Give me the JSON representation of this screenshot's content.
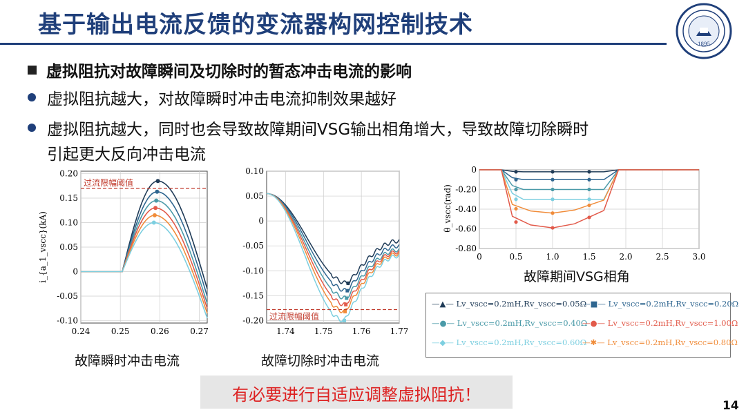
{
  "header": {
    "title": "基于输出电流反馈的变流器构网控制技术",
    "subtitle": "虚拟阻抗对故障瞬间及切除时的暂态冲击电流的影响",
    "bullet1": "虚拟阻抗越大，对故障瞬时冲击电流抑制效果越好",
    "bullet2_line1": "虚拟阻抗越大，同时也会导致故障期间VSG输出相角增大，导致故障切除瞬时",
    "bullet2_line2": "引起更大反向冲击电流"
  },
  "footer": {
    "note": "有必要进行自适应调整虚拟阻抗！",
    "page": "14"
  },
  "colors": [
    "#1f3b57",
    "#2f6690",
    "#4a9aa8",
    "#7dcfe0",
    "#f08c3a",
    "#e25a4a"
  ],
  "chart_data": [
    {
      "type": "line",
      "caption": "故障瞬时冲击电流",
      "ylabel": "i_{a_1_vscc}(kA)",
      "xlim": [
        0.24,
        0.272
      ],
      "ylim": [
        -0.105,
        0.205
      ],
      "xticks": [
        "0.24",
        "0.25",
        "0.26",
        "0.27"
      ],
      "yticks": [
        "0.20",
        "0.15",
        "0.10",
        "0.05",
        "0",
        "-0.05",
        "-0.10"
      ],
      "annotation": {
        "text": "过流限幅阈值",
        "y": 0.17
      },
      "series": [
        {
          "peak_x": 0.2595,
          "peak": 0.185,
          "end": -0.035,
          "legend": 0
        },
        {
          "peak_x": 0.2593,
          "peak": 0.163,
          "end": -0.05,
          "legend": 3
        },
        {
          "peak_x": 0.2591,
          "peak": 0.145,
          "end": -0.065,
          "legend": 1
        },
        {
          "peak_x": 0.2589,
          "peak": 0.13,
          "end": -0.075,
          "legend": 4
        },
        {
          "peak_x": 0.2587,
          "peak": 0.115,
          "end": -0.085,
          "legend": 5
        },
        {
          "peak_x": 0.2585,
          "peak": 0.1,
          "end": -0.095,
          "legend": 2
        }
      ]
    },
    {
      "type": "line",
      "caption": "故障切除时冲击电流",
      "xlim": [
        1.735,
        1.77
      ],
      "ylim": [
        -0.205,
        0.1
      ],
      "xticks": [
        "1.74",
        "1.75",
        "1.76",
        "1.77"
      ],
      "yticks": [
        "0.10",
        "0.05",
        "0",
        "-0.05",
        "-0.10",
        "-0.15",
        "-0.20"
      ],
      "annotation": {
        "text": "过流限幅阈值",
        "y": -0.178
      },
      "series": [
        {
          "trough_x": 1.7565,
          "trough": -0.125,
          "end": -0.04,
          "legend": 0
        },
        {
          "trough_x": 1.7563,
          "trough": -0.14,
          "end": -0.05,
          "legend": 3
        },
        {
          "trough_x": 1.7561,
          "trough": -0.155,
          "end": -0.058,
          "legend": 1
        },
        {
          "trough_x": 1.7559,
          "trough": -0.168,
          "end": -0.062,
          "legend": 4
        },
        {
          "trough_x": 1.7557,
          "trough": -0.182,
          "end": -0.066,
          "legend": 5
        },
        {
          "trough_x": 1.7555,
          "trough": -0.2,
          "end": -0.07,
          "legend": 2
        }
      ]
    },
    {
      "type": "line",
      "caption": "故障期间VSG相角",
      "ylabel": "θ_vscc(rad)",
      "xlim": [
        0,
        3.0
      ],
      "ylim": [
        -0.8,
        0
      ],
      "xticks": [
        "0",
        "0.5",
        "1.0",
        "1.5",
        "2.0",
        "2.5",
        "3.0"
      ],
      "yticks": [
        "0",
        "-0.20",
        "-0.40",
        "-0.60",
        "-0.80"
      ],
      "series": [
        {
          "level": -0.02,
          "legend": 0,
          "marker": "triangle"
        },
        {
          "level": -0.1,
          "legend": 3,
          "marker": "square"
        },
        {
          "level": -0.2,
          "legend": 1,
          "marker": "circle"
        },
        {
          "level": -0.3,
          "legend": 2,
          "marker": "diamond"
        },
        {
          "level": -0.44,
          "legend": 5,
          "marker": "star"
        },
        {
          "level": -0.59,
          "legend": 4,
          "marker": "dot"
        }
      ]
    }
  ],
  "legend": [
    {
      "L": "0.2mH",
      "R": "0.05Ω",
      "color": "#1f3b57",
      "marker": "▲"
    },
    {
      "L": "0.2mH",
      "R": "0.40Ω",
      "color": "#4a9aa8",
      "marker": "●"
    },
    {
      "L": "0.2mH",
      "R": "0.60Ω",
      "color": "#7dcfe0",
      "marker": "◆"
    },
    {
      "L": "0.2mH",
      "R": "0.20Ω",
      "color": "#2f6690",
      "marker": "■"
    },
    {
      "L": "0.2mH",
      "R": "1.00Ω",
      "color": "#e25a4a",
      "marker": "●"
    },
    {
      "L": "0.2mH",
      "R": "0.80Ω",
      "color": "#f08c3a",
      "marker": "✱"
    }
  ]
}
